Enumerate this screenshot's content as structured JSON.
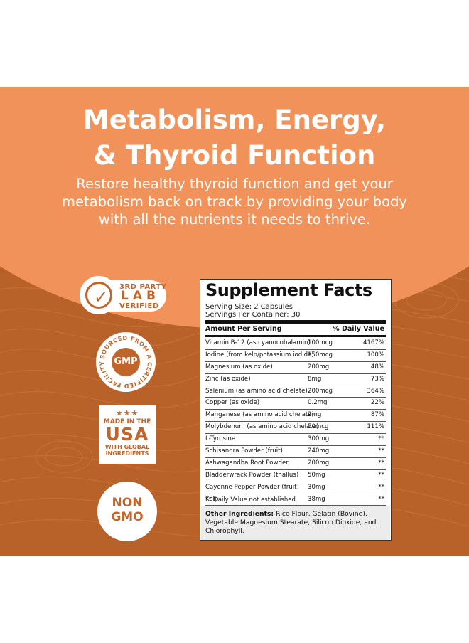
{
  "header": {
    "title_line1": "Metabolism, Energy,",
    "title_line2": "& Thyroid Function",
    "subtitle_line1": "Restore healthy thyroid function and get your",
    "subtitle_line2": "metabolism back on track by providing your body",
    "subtitle_line3": "with all the nutrients it needs to thrive."
  },
  "badges": {
    "lab": {
      "line1": "3RD PARTY",
      "line2": "LAB",
      "line3": "VERIFIED"
    },
    "gmp": {
      "ring_text": "SOURCED FROM A CERTIFIED FACILITY",
      "core": "GMP"
    },
    "usa": {
      "stars": "★★★",
      "line1": "MADE IN THE",
      "line2": "USA",
      "line3": "WITH GLOBAL",
      "line4": "INGREDIENTS"
    },
    "gmo": {
      "line1": "NON",
      "line2": "GMO"
    }
  },
  "facts": {
    "title": "Supplement Facts",
    "serving_size": "Serving Size: 2 Capsules",
    "servings_per": "Servings Per Container: 30",
    "col_amount": "Amount Per Serving",
    "col_dv": "% Daily Value",
    "rows": [
      {
        "name": "Vitamin B-12 (as cyanocobalamin)",
        "amount": "100mcg",
        "dv": "4167%"
      },
      {
        "name": "Iodine (from kelp/potassium iodide)",
        "amount": "150mcg",
        "dv": "100%"
      },
      {
        "name": "Magnesium (as oxide)",
        "amount": "200mg",
        "dv": "48%"
      },
      {
        "name": "Zinc (as oxide)",
        "amount": "8mg",
        "dv": "73%"
      },
      {
        "name": "Selenium (as amino acid chelate)",
        "amount": "200mcg",
        "dv": "364%"
      },
      {
        "name": "Copper (as oxide)",
        "amount": "0.2mg",
        "dv": "22%"
      },
      {
        "name": "Manganese (as amino acid chelate)",
        "amount": "2mg",
        "dv": "87%"
      },
      {
        "name": "Molybdenum (as amino acid chelate)",
        "amount": "50mcg",
        "dv": "111%"
      },
      {
        "name": "L-Tyrosine",
        "amount": "300mg",
        "dv": "**"
      },
      {
        "name": "Schisandra Powder (fruit)",
        "amount": "240mg",
        "dv": "**"
      },
      {
        "name": "Ashwagandha Root Powder",
        "amount": "200mg",
        "dv": "**"
      },
      {
        "name": "Bladderwrack Powder (thallus)",
        "amount": "50mg",
        "dv": "**"
      },
      {
        "name": "Cayenne Pepper Powder (fruit)",
        "amount": "30mg",
        "dv": "**"
      },
      {
        "name": "Kelp",
        "amount": "38mg",
        "dv": "**"
      }
    ],
    "footnote": "** Daily Value not established.",
    "other_label": "Other Ingredients:",
    "other_text": " Rice Flour, Gelatin (Bovine), Vegetable Magnesium Stearate, Silicon Dioxide, and Chlorophyll."
  },
  "colors": {
    "panel": "#b8622a",
    "banner": "#f0925a",
    "badge_text": "#c2652a"
  }
}
